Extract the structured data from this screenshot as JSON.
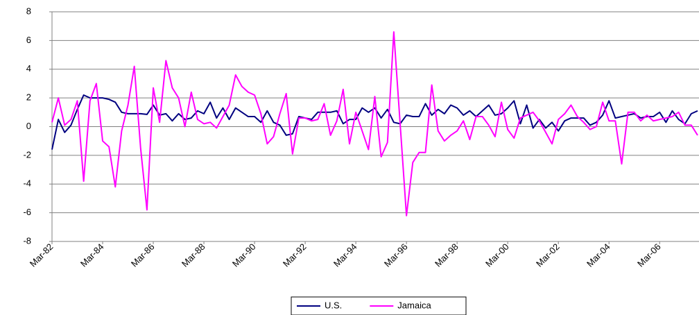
{
  "chart_data": {
    "type": "line",
    "categories": [
      "Mar-82",
      null,
      null,
      null,
      null,
      null,
      null,
      null,
      "Mar-84",
      null,
      null,
      null,
      null,
      null,
      null,
      null,
      "Mar-86",
      null,
      null,
      null,
      null,
      null,
      null,
      null,
      "Mar-88",
      null,
      null,
      null,
      null,
      null,
      null,
      null,
      "Mar-90",
      null,
      null,
      null,
      null,
      null,
      null,
      null,
      "Mar-92",
      null,
      null,
      null,
      null,
      null,
      null,
      null,
      "Mar-94",
      null,
      null,
      null,
      null,
      null,
      null,
      null,
      "Mar-96",
      null,
      null,
      null,
      null,
      null,
      null,
      null,
      "Mar-98",
      null,
      null,
      null,
      null,
      null,
      null,
      null,
      "Mar-00",
      null,
      null,
      null,
      null,
      null,
      null,
      null,
      "Mar-02",
      null,
      null,
      null,
      null,
      null,
      null,
      null,
      "Mar-04",
      null,
      null,
      null,
      null,
      null,
      null,
      null,
      "Mar-06",
      null,
      null,
      null,
      null,
      null,
      null
    ],
    "series": [
      {
        "name": "U.S.",
        "color": "#000080",
        "values": [
          -1.6,
          0.5,
          -0.4,
          0.1,
          1.2,
          2.2,
          2.0,
          2.0,
          2.0,
          1.9,
          1.7,
          1.0,
          0.9,
          0.9,
          0.9,
          0.85,
          1.5,
          0.8,
          0.9,
          0.4,
          0.9,
          0.5,
          0.6,
          1.1,
          0.9,
          1.7,
          0.6,
          1.3,
          0.5,
          1.3,
          1.0,
          0.7,
          0.7,
          0.3,
          1.1,
          0.3,
          0.1,
          -0.6,
          -0.5,
          0.7,
          0.6,
          0.5,
          1.0,
          1.0,
          1.0,
          1.1,
          0.2,
          0.5,
          0.5,
          1.3,
          1.0,
          1.3,
          0.6,
          1.2,
          0.3,
          0.2,
          0.8,
          0.7,
          0.7,
          1.6,
          0.8,
          1.2,
          0.9,
          1.5,
          1.3,
          0.8,
          1.1,
          0.7,
          1.1,
          1.5,
          0.8,
          0.9,
          1.3,
          1.8,
          0.2,
          1.5,
          -0.1,
          0.5,
          -0.1,
          0.3,
          -0.3,
          0.4,
          0.6,
          0.6,
          0.6,
          0.1,
          0.3,
          0.8,
          1.8,
          0.6,
          0.7,
          0.8,
          0.9,
          0.6,
          0.7,
          0.7,
          1.0,
          0.3,
          1.1,
          0.5,
          0.2,
          0.9,
          1.1
        ]
      },
      {
        "name": "Jamaica",
        "color": "#ff00ff",
        "values": [
          0.3,
          2.0,
          0.1,
          0.5,
          1.8,
          -3.8,
          1.8,
          3.0,
          -1.0,
          -1.4,
          -4.2,
          -0.3,
          1.5,
          4.2,
          -1.5,
          -5.8,
          2.7,
          0.3,
          4.6,
          2.7,
          2.0,
          0,
          2.4,
          0.5,
          0.2,
          0.3,
          -0.1,
          0.7,
          1.5,
          3.6,
          2.8,
          2.4,
          2.2,
          0.9,
          -1.2,
          -0.7,
          0.9,
          2.3,
          -1.9,
          0.6,
          0.6,
          0.4,
          0.5,
          1.6,
          -0.6,
          0.4,
          2.6,
          -1.2,
          1.0,
          -0.3,
          -1.6,
          2.1,
          -2.1,
          -1.1,
          6.6,
          0.2,
          -6.2,
          -2.5,
          -1.8,
          -1.8,
          2.9,
          -0.3,
          -1.0,
          -0.6,
          -0.3,
          0.4,
          -0.9,
          0.7,
          0.7,
          0.1,
          -0.7,
          1.7,
          -0.2,
          -0.8,
          0.6,
          0.8,
          1.0,
          0.4,
          -0.4,
          -1.2,
          0.5,
          0.9,
          1.5,
          0.7,
          0.3,
          -0.2,
          0,
          1.7,
          0.4,
          0.4,
          -2.6,
          1.0,
          1.0,
          0.4,
          0.8,
          0.4,
          0.5,
          0.6,
          0.7,
          1.0,
          0.1,
          0.1,
          -0.6
        ]
      }
    ],
    "ylim": [
      -8,
      8
    ],
    "yticks": [
      -8,
      -6,
      -4,
      -2,
      0,
      2,
      4,
      6,
      8
    ],
    "grid": true,
    "legend": "bottom"
  }
}
